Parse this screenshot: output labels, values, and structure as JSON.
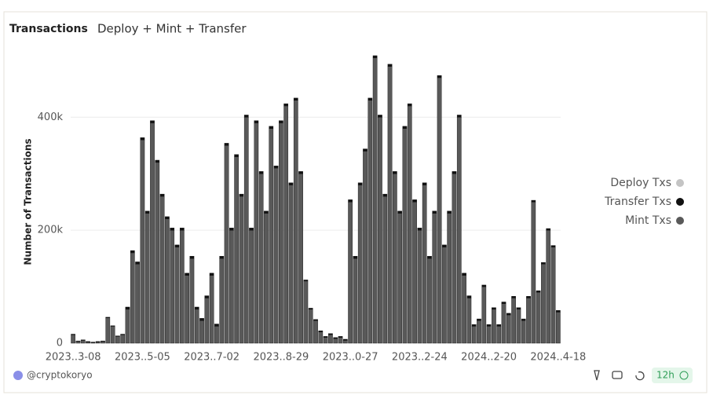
{
  "chart_data": {
    "type": "bar",
    "stacked": true,
    "title": "Transactions",
    "subtitle": "Deploy + Mint + Transfer",
    "y_label": "Number of Transactions",
    "grid": true,
    "ylim": [
      0,
      520000
    ],
    "yticks": [
      0,
      {
        "value": 200000,
        "label": "200k"
      },
      {
        "value": 400000,
        "label": "400k"
      }
    ],
    "categories": [
      "2023..3-08",
      null,
      null,
      null,
      null,
      null,
      null,
      null,
      null,
      null,
      null,
      null,
      null,
      null,
      "2023..5-05",
      null,
      null,
      null,
      null,
      null,
      null,
      null,
      null,
      null,
      null,
      null,
      null,
      null,
      "2023..7-02",
      null,
      null,
      null,
      null,
      null,
      null,
      null,
      null,
      null,
      null,
      null,
      null,
      null,
      "2023..8-29",
      null,
      null,
      null,
      null,
      null,
      null,
      null,
      null,
      null,
      null,
      null,
      null,
      null,
      "2023..0-27",
      null,
      null,
      null,
      null,
      null,
      null,
      null,
      null,
      null,
      null,
      null,
      null,
      null,
      "2023..2-24",
      null,
      null,
      null,
      null,
      null,
      null,
      null,
      null,
      null,
      null,
      null,
      null,
      null,
      "2024..2-20",
      null,
      null,
      null,
      null,
      null,
      null,
      null,
      null,
      null,
      null,
      null,
      null,
      null,
      "2024..4-18"
    ],
    "series": [
      {
        "name": "Deploy Txs",
        "color": "#c4c4c4",
        "values": [
          0,
          0,
          0,
          0,
          0,
          0,
          0,
          0,
          0,
          0,
          0,
          0,
          0,
          0,
          0,
          0,
          0,
          0,
          0,
          0,
          0,
          0,
          0,
          0,
          0,
          0,
          0,
          0,
          0,
          0,
          0,
          0,
          0,
          0,
          0,
          0,
          0,
          0,
          0,
          0,
          0,
          0,
          0,
          0,
          0,
          0,
          0,
          0,
          0,
          0,
          0,
          0,
          0,
          0,
          0,
          0,
          0,
          0,
          0,
          0,
          0,
          0,
          0,
          0,
          0,
          0,
          0,
          0,
          0,
          0,
          0,
          0,
          0,
          0,
          0,
          0,
          0,
          0,
          0,
          0,
          0,
          0,
          0,
          0,
          0,
          0,
          0,
          0,
          0,
          0,
          0,
          0,
          0,
          0,
          0,
          0,
          0,
          0,
          0
        ]
      },
      {
        "name": "Transfer Txs",
        "color": "#111111",
        "values": [
          1000,
          1000,
          1000,
          1000,
          1000,
          1000,
          1000,
          1000,
          1000,
          1000,
          1000,
          4000,
          4000,
          4000,
          4000,
          4000,
          4000,
          4000,
          4000,
          4000,
          4000,
          4000,
          4000,
          4000,
          4000,
          4000,
          4000,
          4000,
          4000,
          4000,
          4000,
          4000,
          4000,
          4000,
          4000,
          4000,
          4000,
          4000,
          4000,
          4000,
          4000,
          4000,
          4000,
          4000,
          4000,
          4000,
          4000,
          2000,
          2000,
          2000,
          2000,
          2000,
          2000,
          2000,
          2000,
          2000,
          4000,
          4000,
          4000,
          4000,
          4000,
          4000,
          4000,
          4000,
          4000,
          4000,
          4000,
          4000,
          4000,
          4000,
          4000,
          4000,
          4000,
          4000,
          4000,
          4000,
          4000,
          4000,
          4000,
          4000,
          4000,
          3000,
          3000,
          3000,
          3000,
          3000,
          3000,
          3000,
          3000,
          3000,
          3000,
          3000,
          3000,
          3000,
          3000,
          3000,
          3000,
          3000,
          3000
        ]
      },
      {
        "name": "Mint Txs",
        "color": "#595959",
        "values": [
          15000,
          3000,
          5000,
          2000,
          1000,
          2000,
          3000,
          45000,
          30000,
          12000,
          15000,
          60000,
          160000,
          140000,
          360000,
          230000,
          390000,
          320000,
          260000,
          220000,
          200000,
          170000,
          200000,
          120000,
          150000,
          60000,
          40000,
          80000,
          120000,
          30000,
          150000,
          350000,
          200000,
          330000,
          260000,
          400000,
          200000,
          390000,
          300000,
          230000,
          380000,
          310000,
          390000,
          420000,
          280000,
          430000,
          300000,
          110000,
          60000,
          40000,
          20000,
          10000,
          15000,
          8000,
          10000,
          5000,
          250000,
          150000,
          280000,
          340000,
          430000,
          505000,
          400000,
          260000,
          490000,
          300000,
          230000,
          380000,
          420000,
          250000,
          200000,
          280000,
          150000,
          230000,
          470000,
          170000,
          230000,
          300000,
          400000,
          120000,
          80000,
          30000,
          40000,
          100000,
          30000,
          60000,
          30000,
          70000,
          50000,
          80000,
          60000,
          40000,
          80000,
          250000,
          90000,
          140000,
          200000,
          170000,
          55000
        ]
      }
    ]
  },
  "footer": {
    "author": "@cryptokoryo",
    "refresh": "12h"
  }
}
